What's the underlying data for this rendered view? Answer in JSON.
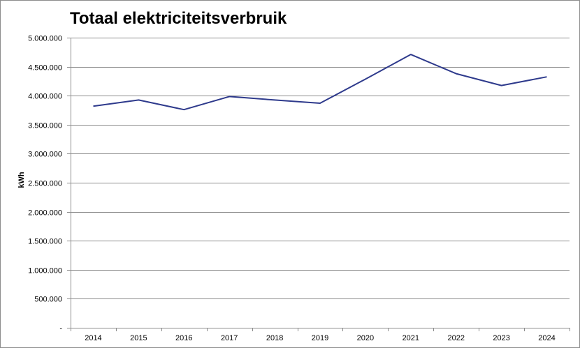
{
  "chart_data": {
    "type": "line",
    "title": "Totaal elektriciteitsverbruik",
    "xlabel": "",
    "ylabel": "kWh",
    "categories": [
      "2014",
      "2015",
      "2016",
      "2017",
      "2018",
      "2019",
      "2020",
      "2021",
      "2022",
      "2023",
      "2024"
    ],
    "series": [
      {
        "values": [
          3820000,
          3925000,
          3760000,
          3985000,
          3925000,
          3870000,
          4285000,
          4710000,
          4380000,
          4175000,
          4325000
        ],
        "color": "#2e3a8c"
      }
    ],
    "ylim": [
      0,
      5000000
    ],
    "y_ticks": [
      0,
      500000,
      1000000,
      1500000,
      2000000,
      2500000,
      3000000,
      3500000,
      4000000,
      4500000,
      5000000
    ],
    "y_tick_labels": [
      "-",
      "500.000",
      "1.000.000",
      "1.500.000",
      "2.000.000",
      "2.500.000",
      "3.000.000",
      "3.500.000",
      "4.000.000",
      "4.500.000",
      "5.000.000"
    ],
    "grid": "horizontal",
    "gridline_color": "#8c8c8c",
    "legend": "none"
  }
}
